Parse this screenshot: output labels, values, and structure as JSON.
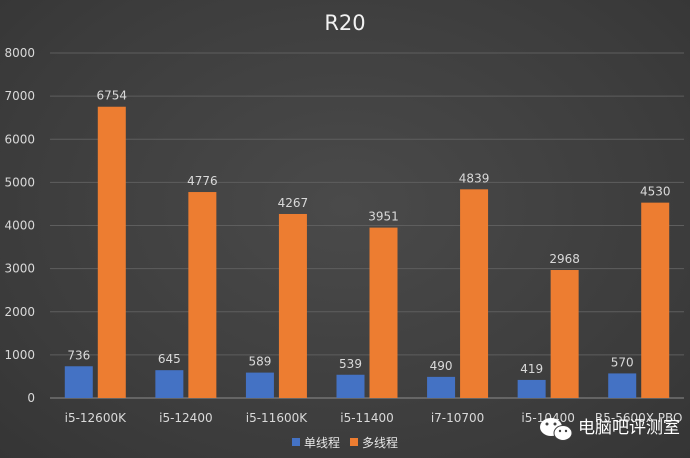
{
  "chart_data": {
    "type": "bar",
    "title": "R20",
    "categories": [
      "i5-12600K",
      "i5-12400",
      "i5-11600K",
      "i5-11400",
      "i7-10700",
      "i5-10400",
      "R5-5600X PBO"
    ],
    "series": [
      {
        "name": "单线程",
        "color": "#4472c4",
        "values": [
          736,
          645,
          589,
          539,
          490,
          419,
          570
        ]
      },
      {
        "name": "多线程",
        "color": "#ed7d31",
        "values": [
          6754,
          4776,
          4267,
          3951,
          4839,
          2968,
          4530
        ]
      }
    ],
    "ylim": [
      0,
      8000
    ],
    "yticks": [
      "0",
      "1000",
      "2000",
      "3000",
      "4000",
      "5000",
      "6000",
      "7000",
      "8000"
    ],
    "grid": true,
    "legend_position": "bottom"
  },
  "watermark": {
    "text": "电脑吧评测室",
    "icon": "wechat-icon"
  }
}
